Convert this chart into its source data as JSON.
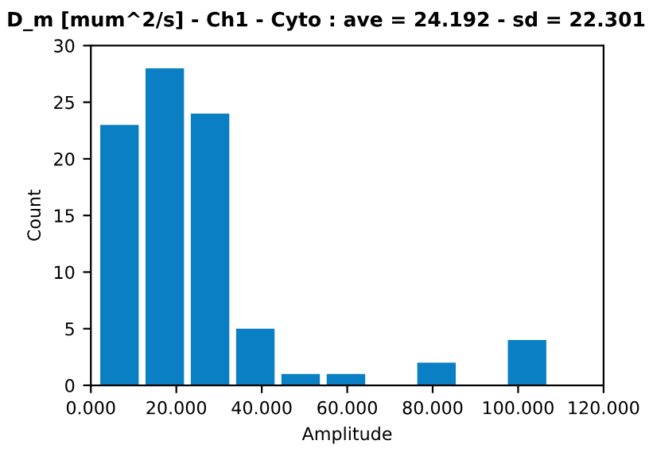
{
  "chart_data": {
    "type": "histogram",
    "title": "D_m [mum^2/s] - Ch1 - Cyto : ave = 24.192 - sd = 22.301",
    "xlabel": "Amplitude",
    "ylabel": "Count",
    "bins": [
      1.4,
      12.0,
      22.6,
      33.2,
      43.8,
      54.4,
      65.0,
      75.6,
      86.2,
      96.8,
      107.4
    ],
    "values": [
      23,
      28,
      24,
      5,
      1,
      1,
      0,
      2,
      0,
      4
    ],
    "color": "#0a7fc4",
    "xlim": [
      0,
      120
    ],
    "xticks": [
      {
        "value": 0,
        "label": "0.000"
      },
      {
        "value": 20,
        "label": "20.000"
      },
      {
        "value": 40,
        "label": "40.000"
      },
      {
        "value": 60,
        "label": "60.000"
      },
      {
        "value": 80,
        "label": "80.000"
      },
      {
        "value": 100,
        "label": "100.000"
      },
      {
        "value": 120,
        "label": "120.000"
      }
    ],
    "ylim": [
      0,
      30
    ],
    "yticks": [
      0,
      5,
      10,
      15,
      20,
      25,
      30
    ],
    "grid": false
  }
}
